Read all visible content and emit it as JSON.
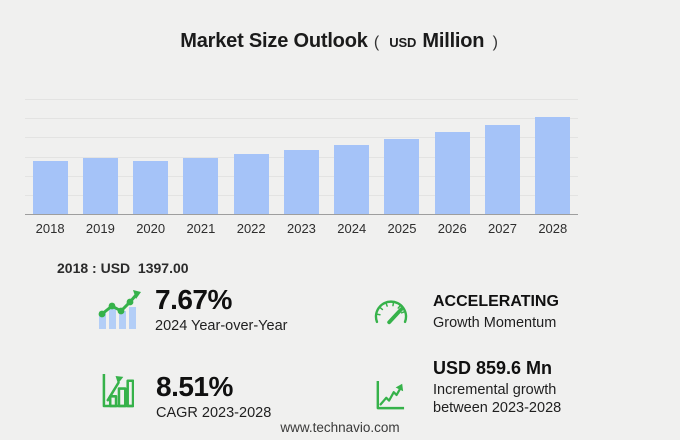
{
  "title": {
    "main": "Market Size Outlook",
    "open_paren": "(",
    "currency": "USD",
    "unit": "Million",
    "close_paren": ")"
  },
  "chart_data": {
    "type": "bar",
    "title": "Market Size Outlook (USD Million)",
    "categories": [
      "2018",
      "2019",
      "2020",
      "2021",
      "2022",
      "2023",
      "2024",
      "2025",
      "2026",
      "2027",
      "2028"
    ],
    "values": [
      1397.0,
      1478,
      1416,
      1490,
      1597,
      1704.3,
      1835,
      1985,
      2156,
      2350,
      2563.9
    ],
    "xlabel": "",
    "ylabel": "",
    "ylim": [
      0,
      3000
    ],
    "grid_step": 500,
    "y_tick_labels_visible": false,
    "grid": "horizontal",
    "legend": "none",
    "bar_color": "#a5c3f8"
  },
  "base_year_note": "2018 : USD  1397.00",
  "stats": {
    "yoy": {
      "icon": "bar-line-growth-icon",
      "value": "7.67%",
      "label": "2024 Year-over-Year"
    },
    "momentum": {
      "icon": "speedometer-icon",
      "value": "ACCELERATING",
      "label": "Growth Momentum"
    },
    "cagr": {
      "icon": "bar-chart-arrow-icon",
      "value": "8.51%",
      "label": "CAGR 2023-2028"
    },
    "incremental": {
      "icon": "line-chart-arrow-icon",
      "value": "USD 859.6 Mn",
      "label_line1": "Incremental growth",
      "label_line2": "between 2023-2028"
    }
  },
  "footer": {
    "url": "www.technavio.com"
  },
  "colors": {
    "background": "#f0f0ef",
    "bar": "#a5c3f8",
    "grid": "#e3e3e2",
    "axis": "#9e9e9e",
    "accent_green": "#36b24a",
    "icon_bar_blue": "#b3cef7",
    "text_dark": "#1b1b1b"
  }
}
